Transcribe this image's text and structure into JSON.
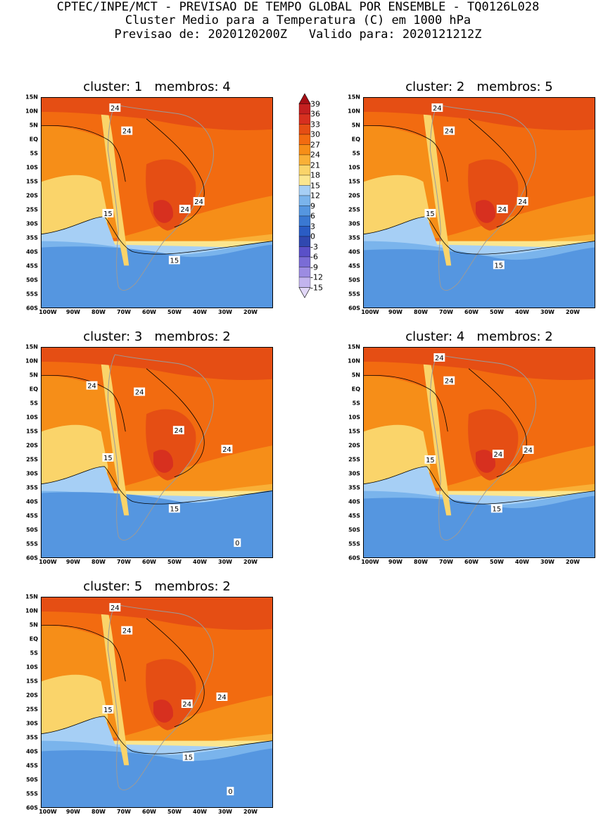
{
  "header": {
    "line1": "CPTEC/INPE/MCT - PREVISAO DE TEMPO GLOBAL POR ENSEMBLE - TQ0126L028",
    "line2": "Cluster Medio para a Temperatura (C) em 1000 hPa",
    "line3": "Previsao de: 2020120200Z   Valido para: 2020121212Z"
  },
  "axes": {
    "lat_labels": [
      "15N",
      "10N",
      "5N",
      "EQ",
      "5S",
      "10S",
      "15S",
      "20S",
      "25S",
      "30S",
      "35S",
      "40S",
      "45S",
      "50S",
      "55S",
      "60S"
    ],
    "lon_labels": [
      "100W",
      "90W",
      "80W",
      "70W",
      "60W",
      "50W",
      "40W",
      "30W",
      "20W"
    ]
  },
  "colorbar": {
    "labels": [
      "39",
      "36",
      "33",
      "30",
      "27",
      "24",
      "21",
      "18",
      "15",
      "12",
      "9",
      "6",
      "3",
      "0",
      "-3",
      "-6",
      "-9",
      "-12",
      "-15"
    ],
    "colors": [
      "#a50f15",
      "#c42020",
      "#d7301f",
      "#e54e14",
      "#f26b10",
      "#f68e18",
      "#f9b037",
      "#fad46a",
      "#fbe68f",
      "#a6cff5",
      "#7ab4ec",
      "#5596e0",
      "#3a78d2",
      "#2a5cc4",
      "#3048b0",
      "#5a50c8",
      "#7a6cd6",
      "#9c8ce2",
      "#c2b4ee",
      "#e2d8f8"
    ]
  },
  "panels": [
    {
      "title": "cluster: 1   membros: 4",
      "labels": [
        {
          "t": "24"
        },
        {
          "t": "24"
        },
        {
          "t": "24"
        },
        {
          "t": "24"
        },
        {
          "t": "15"
        },
        {
          "t": "15"
        }
      ]
    },
    {
      "title": "cluster: 2   membros: 5",
      "labels": [
        {
          "t": "24"
        },
        {
          "t": "24"
        },
        {
          "t": "24"
        },
        {
          "t": "24"
        },
        {
          "t": "15"
        },
        {
          "t": "15"
        }
      ]
    },
    {
      "title": "cluster: 3   membros: 2",
      "labels": [
        {
          "t": "24"
        },
        {
          "t": "24"
        },
        {
          "t": "24"
        },
        {
          "t": "24"
        },
        {
          "t": "15"
        },
        {
          "t": "15"
        },
        {
          "t": "0"
        }
      ]
    },
    {
      "title": "cluster: 4   membros: 2",
      "labels": [
        {
          "t": "24"
        },
        {
          "t": "24"
        },
        {
          "t": "24"
        },
        {
          "t": "24"
        },
        {
          "t": "15"
        },
        {
          "t": "15"
        }
      ]
    },
    {
      "title": "cluster: 5   membros: 2",
      "labels": [
        {
          "t": "24"
        },
        {
          "t": "24"
        },
        {
          "t": "24"
        },
        {
          "t": "24"
        },
        {
          "t": "15"
        },
        {
          "t": "15"
        },
        {
          "t": "0"
        }
      ]
    }
  ]
}
